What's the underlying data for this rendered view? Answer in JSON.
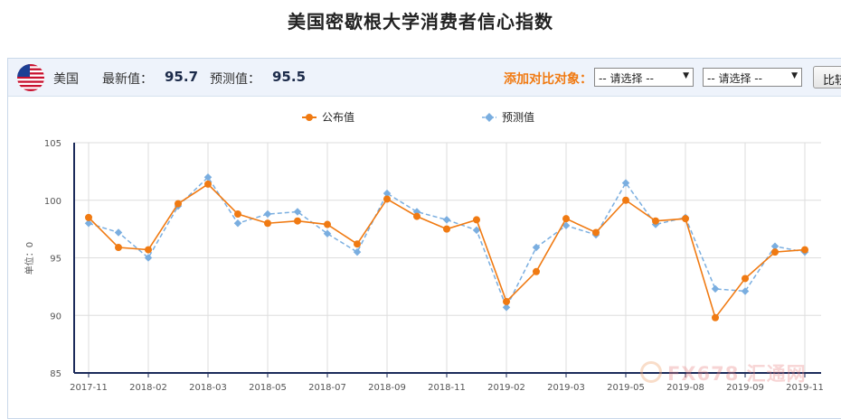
{
  "page_title": "美国密歇根大学消费者信心指数",
  "info": {
    "country": "美国",
    "latest_label": "最新值：",
    "latest_value": "95.7",
    "forecast_label": "预测值：",
    "forecast_value": "95.5",
    "compare_label": "添加对比对象：",
    "select1": "-- 请选择 --",
    "select2": "-- 请选择 --",
    "compare_button": "比较"
  },
  "watermark": "FX678 汇通网",
  "colors": {
    "published": "#f07a12",
    "forecast": "#7aaee0",
    "axis": "#1c2b5a",
    "grid": "#dddddd"
  },
  "chart_data": {
    "type": "line",
    "ylabel": "单位：0",
    "ylim": [
      85,
      105
    ],
    "yticks": [
      85,
      90,
      95,
      100,
      105
    ],
    "x_tick_labels": [
      {
        "index": 0,
        "label": "2017-11"
      },
      {
        "index": 2,
        "label": "2018-02"
      },
      {
        "index": 4,
        "label": "2018-03"
      },
      {
        "index": 6,
        "label": "2018-05"
      },
      {
        "index": 8,
        "label": "2018-07"
      },
      {
        "index": 10,
        "label": "2018-09"
      },
      {
        "index": 12,
        "label": "2018-11"
      },
      {
        "index": 14,
        "label": "2019-02"
      },
      {
        "index": 16,
        "label": "2019-03"
      },
      {
        "index": 18,
        "label": "2019-05"
      },
      {
        "index": 20,
        "label": "2019-08"
      },
      {
        "index": 22,
        "label": "2019-09"
      },
      {
        "index": 24,
        "label": "2019-11"
      }
    ],
    "series": [
      {
        "name": "公布值",
        "style": "solid",
        "values": [
          98.5,
          95.9,
          95.7,
          99.7,
          101.4,
          98.8,
          98.0,
          98.2,
          97.9,
          96.2,
          100.1,
          98.6,
          97.5,
          98.3,
          91.2,
          93.8,
          98.4,
          97.2,
          100.0,
          98.2,
          98.4,
          89.8,
          93.2,
          95.5,
          95.7
        ]
      },
      {
        "name": "预测值",
        "style": "dashed",
        "values": [
          98.0,
          97.2,
          95.0,
          99.5,
          102.0,
          98.0,
          98.8,
          99.0,
          97.1,
          95.5,
          100.6,
          99.0,
          98.3,
          97.4,
          90.7,
          95.9,
          97.8,
          97.0,
          101.5,
          97.9,
          98.5,
          92.3,
          92.1,
          96.0,
          95.5
        ]
      }
    ]
  }
}
